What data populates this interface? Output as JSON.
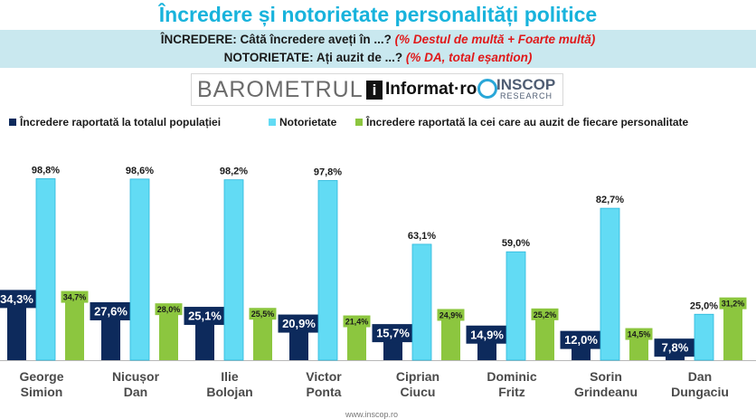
{
  "header": {
    "title": "Încredere și notorietate personalități politice",
    "line1_label": "ÎNCREDERE:",
    "line1_text": "Câtă încredere aveți în ...?",
    "line1_note": "(% Destul de multă + Foarte multă)",
    "line2_label": "NOTORIETATE:",
    "line2_text": "Ați auzit de ...?",
    "line2_note": "(% DA, total eșantion)"
  },
  "logos": {
    "barometrul": "BAROMETRUL",
    "informat_mark": "i",
    "informat": "Informat·ro",
    "inscop": "INSCOP",
    "research": "RESEARCH"
  },
  "colors": {
    "series1": "#0d2a5c",
    "series2": "#62dbf4",
    "series3": "#8cc63f",
    "title": "#18b3dc"
  },
  "chart_data": {
    "type": "bar",
    "title": "Încredere și notorietate personalități politice",
    "xlabel": "",
    "ylabel": "",
    "ylim": [
      0,
      100
    ],
    "grid": false,
    "legend_position": "top",
    "categories": [
      "George Simion",
      "Nicușor Dan",
      "Ilie Bolojan",
      "Victor Ponta",
      "Ciprian Ciucu",
      "Dominic Fritz",
      "Sorin Grindeanu",
      "Dan Dungaciu"
    ],
    "category_lines": [
      [
        "George",
        "Simion"
      ],
      [
        "Nicușor",
        "Dan"
      ],
      [
        "Ilie",
        "Bolojan"
      ],
      [
        "Victor",
        "Ponta"
      ],
      [
        "Ciprian",
        "Ciucu"
      ],
      [
        "Dominic",
        "Fritz"
      ],
      [
        "Sorin",
        "Grindeanu"
      ],
      [
        "Dan",
        "Dungaciu"
      ]
    ],
    "series": [
      {
        "name": "Încredere raportată la totalul populației",
        "values": [
          34.3,
          27.6,
          25.1,
          20.9,
          15.7,
          14.9,
          12.0,
          7.8
        ],
        "labels": [
          "34,3%",
          "27,6%",
          "25,1%",
          "20,9%",
          "15,7%",
          "14,9%",
          "12,0%",
          "7,8%"
        ]
      },
      {
        "name": "Notorietate",
        "values": [
          98.8,
          98.6,
          98.2,
          97.8,
          63.1,
          59.0,
          82.7,
          25.0
        ],
        "labels": [
          "98,8%",
          "98,6%",
          "98,2%",
          "97,8%",
          "63,1%",
          "59,0%",
          "82,7%",
          "25,0%"
        ]
      },
      {
        "name": "Încredere raportată la cei care au auzit de fiecare personalitate",
        "values": [
          34.7,
          28.0,
          25.5,
          21.4,
          24.9,
          25.2,
          14.5,
          31.2
        ],
        "labels": [
          "34,7%",
          "28,0%",
          "25,5%",
          "21,4%",
          "24,9%",
          "25,2%",
          "14,5%",
          "31,2%"
        ]
      }
    ]
  },
  "footer": "www.inscop.ro"
}
